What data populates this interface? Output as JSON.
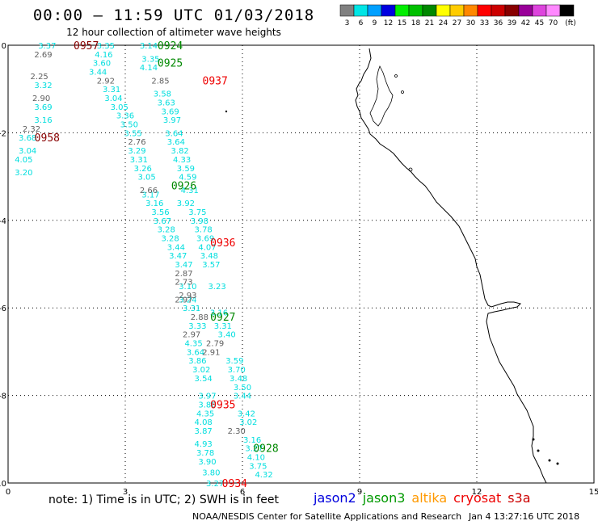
{
  "header": {
    "title": "00:00 – 11:59 UTC 01/03/2018",
    "subtitle": "12 hour collection of altimeter wave heights"
  },
  "legend": {
    "unit": "(ft)",
    "bins": [
      {
        "label": "3",
        "color": "#808080"
      },
      {
        "label": "6",
        "color": "#00e5e5"
      },
      {
        "label": "9",
        "color": "#00a0ff"
      },
      {
        "label": "12",
        "color": "#0000e0"
      },
      {
        "label": "15",
        "color": "#00ee00"
      },
      {
        "label": "18",
        "color": "#00c000"
      },
      {
        "label": "21",
        "color": "#008800"
      },
      {
        "label": "24",
        "color": "#ffff00"
      },
      {
        "label": "27",
        "color": "#ffcc00"
      },
      {
        "label": "30",
        "color": "#ff8800"
      },
      {
        "label": "33",
        "color": "#ff0000"
      },
      {
        "label": "36",
        "color": "#cc0000"
      },
      {
        "label": "39",
        "color": "#880000"
      },
      {
        "label": "42",
        "color": "#990099"
      },
      {
        "label": "45",
        "color": "#dd44dd"
      },
      {
        "label": "70",
        "color": "#ff88ff"
      },
      {
        "label": "",
        "color": "#000000"
      }
    ]
  },
  "axes": {
    "x_ticks": [
      "0",
      "3",
      "6",
      "9",
      "12",
      "15"
    ],
    "y_ticks": [
      "0",
      "-2",
      "-4",
      "-6",
      "-8",
      "-10"
    ]
  },
  "footer": {
    "note": "note: 1) Time is in UTC; 2) SWH is in feet",
    "credit": "NOAA/NESDIS Center for Satellite Applications and Research",
    "timestamp": "Jan  4 13:27:16 UTC 2018"
  },
  "satellites": [
    {
      "name": "jason2",
      "color": "#0000dd"
    },
    {
      "name": "jason3",
      "color": "#009900"
    },
    {
      "name": "altika",
      "color": "#ff9900"
    },
    {
      "name": "cryosat",
      "color": "#ee0000"
    },
    {
      "name": "s3a",
      "color": "#cc0000"
    }
  ],
  "pass_times": [
    {
      "t": "0957",
      "color": "#880000",
      "lon": 2.0,
      "lat": 0.0
    },
    {
      "t": "0924",
      "color": "#008800",
      "lon": 4.15,
      "lat": 0.0
    },
    {
      "t": "0925",
      "color": "#008800",
      "lon": 4.15,
      "lat": -0.4
    },
    {
      "t": "0937",
      "color": "#ee0000",
      "lon": 5.3,
      "lat": -0.8
    },
    {
      "t": "0958",
      "color": "#880000",
      "lon": 1.0,
      "lat": -2.1
    },
    {
      "t": "0926",
      "color": "#008800",
      "lon": 4.5,
      "lat": -3.2
    },
    {
      "t": "0936",
      "color": "#ee0000",
      "lon": 5.5,
      "lat": -4.5
    },
    {
      "t": "0927",
      "color": "#008800",
      "lon": 5.5,
      "lat": -6.2
    },
    {
      "t": "0935",
      "color": "#ee0000",
      "lon": 5.5,
      "lat": -8.2
    },
    {
      "t": "0928",
      "color": "#008800",
      "lon": 6.6,
      "lat": -9.2
    },
    {
      "t": "0934",
      "color": "#ee0000",
      "lon": 5.8,
      "lat": -10.0
    }
  ],
  "tracks": [
    {
      "color": "#00dede",
      "points": [
        [
          1.0,
          0.0,
          "3.37"
        ],
        [
          0.9,
          -0.9,
          "3.32"
        ],
        [
          0.9,
          -1.4,
          "3.69"
        ],
        [
          0.9,
          -1.7,
          "3.16"
        ],
        [
          0.5,
          -2.1,
          "3.68"
        ],
        [
          0.5,
          -2.4,
          "3.04"
        ],
        [
          0.4,
          -2.6,
          "4.05"
        ],
        [
          0.4,
          -2.9,
          "3.20"
        ],
        [
          2.5,
          -0.0,
          "3.35"
        ],
        [
          2.45,
          -0.2,
          "4.16"
        ],
        [
          2.4,
          -0.4,
          "3.60"
        ],
        [
          2.3,
          -0.6,
          "3.44"
        ],
        [
          2.65,
          -1.0,
          "3.31"
        ],
        [
          2.7,
          -1.2,
          "3.04"
        ],
        [
          2.85,
          -1.4,
          "3.05"
        ],
        [
          3.0,
          -1.6,
          "3.36"
        ],
        [
          3.1,
          -1.8,
          "3.50"
        ],
        [
          3.2,
          -2.0,
          "3.55"
        ],
        [
          3.3,
          -2.4,
          "3.29"
        ],
        [
          3.35,
          -2.6,
          "3.31"
        ],
        [
          3.45,
          -2.8,
          "3.26"
        ],
        [
          3.55,
          -3.0,
          "3.05"
        ],
        [
          3.65,
          -3.4,
          "3.17"
        ],
        [
          3.75,
          -3.6,
          "3.16"
        ],
        [
          3.9,
          -3.8,
          "3.56"
        ],
        [
          3.95,
          -4.0,
          "3.67"
        ],
        [
          4.05,
          -4.2,
          "3.28"
        ],
        [
          4.15,
          -4.4,
          "3.28"
        ],
        [
          4.3,
          -4.6,
          "3.44"
        ],
        [
          4.35,
          -4.8,
          "3.47"
        ],
        [
          4.5,
          -5.0,
          "3.47"
        ],
        [
          4.6,
          -5.5,
          "3.10"
        ],
        [
          4.6,
          -5.8,
          "3.24"
        ],
        [
          4.7,
          -6.0,
          "3.31"
        ],
        [
          4.85,
          -6.4,
          "3.33"
        ],
        [
          4.75,
          -6.8,
          "4.35"
        ],
        [
          4.8,
          -7.0,
          "3.64"
        ],
        [
          4.85,
          -7.2,
          "3.86"
        ],
        [
          4.95,
          -7.4,
          "3.02"
        ],
        [
          5.0,
          -7.6,
          "3.54"
        ],
        [
          5.1,
          -8.0,
          "3.97"
        ],
        [
          5.1,
          -8.2,
          "3.88"
        ],
        [
          5.05,
          -8.4,
          "4.35"
        ],
        [
          5.0,
          -8.6,
          "4.08"
        ],
        [
          5.0,
          -8.8,
          "3.87"
        ],
        [
          5.0,
          -9.1,
          "4.93"
        ],
        [
          5.05,
          -9.3,
          "3.78"
        ],
        [
          5.1,
          -9.5,
          "3.90"
        ],
        [
          5.2,
          -9.75,
          "3.80"
        ],
        [
          5.3,
          -10.0,
          "3.27"
        ],
        [
          3.6,
          0.0,
          "3.14"
        ],
        [
          3.65,
          -0.3,
          "3.35"
        ],
        [
          3.6,
          -0.5,
          "4.14"
        ],
        [
          3.95,
          -1.1,
          "3.58"
        ],
        [
          4.05,
          -1.3,
          "3.63"
        ],
        [
          4.15,
          -1.5,
          "3.69"
        ],
        [
          4.2,
          -1.7,
          "3.97"
        ],
        [
          4.25,
          -2.0,
          "3.64"
        ],
        [
          4.3,
          -2.2,
          "3.64"
        ],
        [
          4.4,
          -2.4,
          "3.82"
        ],
        [
          4.45,
          -2.6,
          "4.33"
        ],
        [
          4.55,
          -2.8,
          "3.59"
        ],
        [
          4.6,
          -3.0,
          "4.59"
        ],
        [
          4.65,
          -3.3,
          "4.31"
        ],
        [
          4.55,
          -3.6,
          "3.92"
        ],
        [
          4.85,
          -3.8,
          "3.75"
        ],
        [
          4.9,
          -4.0,
          "3.98"
        ],
        [
          5.0,
          -4.2,
          "3.78"
        ],
        [
          5.05,
          -4.4,
          "3.69"
        ],
        [
          5.1,
          -4.6,
          "4.07"
        ],
        [
          5.15,
          -4.8,
          "3.48"
        ],
        [
          5.2,
          -5.0,
          "3.57"
        ],
        [
          5.35,
          -5.5,
          "3.23"
        ],
        [
          5.4,
          -6.1,
          "3.16"
        ],
        [
          5.5,
          -6.4,
          "3.31"
        ],
        [
          5.6,
          -6.6,
          "3.40"
        ],
        [
          5.8,
          -7.2,
          "3.59"
        ],
        [
          5.85,
          -7.4,
          "3.70"
        ],
        [
          5.9,
          -7.6,
          "3.48"
        ],
        [
          6.0,
          -7.8,
          "3.50"
        ],
        [
          6.0,
          -8.0,
          "3.44"
        ],
        [
          6.1,
          -8.4,
          "3.42"
        ],
        [
          6.15,
          -8.6,
          "3.02"
        ],
        [
          6.25,
          -9.0,
          "3.16"
        ],
        [
          6.3,
          -9.2,
          "3.27"
        ],
        [
          6.35,
          -9.4,
          "4.10"
        ],
        [
          6.4,
          -9.6,
          "3.75"
        ],
        [
          6.55,
          -9.8,
          "4.32"
        ]
      ]
    },
    {
      "color": "#606060",
      "points": [
        [
          0.9,
          -0.2,
          "2.69"
        ],
        [
          0.8,
          -0.7,
          "2.25"
        ],
        [
          0.85,
          -1.2,
          "2.90"
        ],
        [
          0.6,
          -1.9,
          "2.32"
        ],
        [
          2.5,
          -0.8,
          "2.92"
        ],
        [
          3.9,
          -0.8,
          "2.85"
        ],
        [
          3.3,
          -2.2,
          "2.76"
        ],
        [
          3.6,
          -3.3,
          "2.66"
        ],
        [
          4.5,
          -5.2,
          "2.87"
        ],
        [
          4.5,
          -5.4,
          "2.73"
        ],
        [
          4.6,
          -5.7,
          "2.93"
        ],
        [
          4.5,
          -5.8,
          "2.97"
        ],
        [
          4.9,
          -6.2,
          "2.88"
        ],
        [
          4.7,
          -6.6,
          "2.97"
        ],
        [
          5.3,
          -6.8,
          "2.79"
        ],
        [
          5.2,
          -7.0,
          "2.91"
        ],
        [
          5.85,
          -8.8,
          "2.30"
        ]
      ]
    }
  ]
}
